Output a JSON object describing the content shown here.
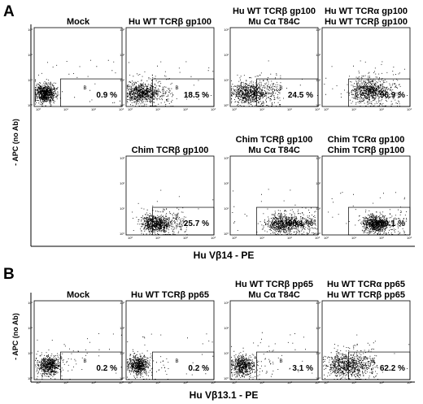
{
  "panels": [
    {
      "letter": "A",
      "y_axis_label": "- APC (no Ab)",
      "x_axis_label": "Hu Vβ14 - PE"
    },
    {
      "letter": "B",
      "y_axis_label": "- APC (no Ab)",
      "x_axis_label": "Hu Vβ13.1 - PE"
    }
  ],
  "chart_data": [
    {
      "type": "scatter",
      "panel": "A",
      "plots": [
        {
          "title": [
            "Mock"
          ],
          "gate_label": "B",
          "gate_percent": "0.9 %",
          "gate_value": 0.9
        },
        {
          "title": [
            "Hu WT TCRβ gp100"
          ],
          "gate_label": "B",
          "gate_percent": "18.5 %",
          "gate_value": 18.5
        },
        {
          "title": [
            "Hu WT TCRβ gp100",
            "Mu Cα T84C"
          ],
          "gate_label": "B",
          "gate_percent": "24.5 %",
          "gate_value": 24.5
        },
        {
          "title": [
            "Hu WT TCRα gp100",
            "Hu WT TCRβ gp100"
          ],
          "gate_label": "B",
          "gate_percent": "96.9 %",
          "gate_value": 96.9
        },
        {
          "title": [
            "Chim TCRβ gp100"
          ],
          "gate_label": "B",
          "gate_percent": "25.7 %",
          "gate_value": 25.7
        },
        {
          "title": [
            "Chim TCRβ gp100",
            "Mu Cα T84C"
          ],
          "gate_label": "B",
          "gate_percent": "95.1 %",
          "gate_value": 95.1
        },
        {
          "title": [
            "Chim TCRα gp100",
            "Chim TCRβ gp100"
          ],
          "gate_label": "B",
          "gate_percent": "99.1 %",
          "gate_value": 99.1
        }
      ],
      "y_ticks": [
        "10³",
        "10²",
        "10¹",
        "10⁰"
      ],
      "x_ticks": [
        "10⁰",
        "10¹",
        "10²",
        "10³"
      ],
      "log_scale": true
    },
    {
      "type": "scatter",
      "panel": "B",
      "plots": [
        {
          "title": [
            "Mock"
          ],
          "gate_label": "B",
          "gate_percent": "0.2 %",
          "gate_value": 0.2
        },
        {
          "title": [
            "Hu WT TCRβ pp65"
          ],
          "gate_label": "B",
          "gate_percent": "0.2 %",
          "gate_value": 0.2
        },
        {
          "title": [
            "Hu WT TCRβ pp65",
            "Mu Cα T84C"
          ],
          "gate_label": "B",
          "gate_percent": "3.1 %",
          "gate_value": 3.1
        },
        {
          "title": [
            "Hu WT TCRα pp65",
            "Hu WT TCRβ pp65"
          ],
          "gate_label": "B",
          "gate_percent": "62.2 %",
          "gate_value": 62.2
        }
      ],
      "y_ticks": [
        "10³",
        "10²",
        "10¹",
        "10⁰"
      ],
      "x_ticks": [
        "10⁰",
        "10¹",
        "10²",
        "10³"
      ],
      "log_scale": true
    }
  ]
}
